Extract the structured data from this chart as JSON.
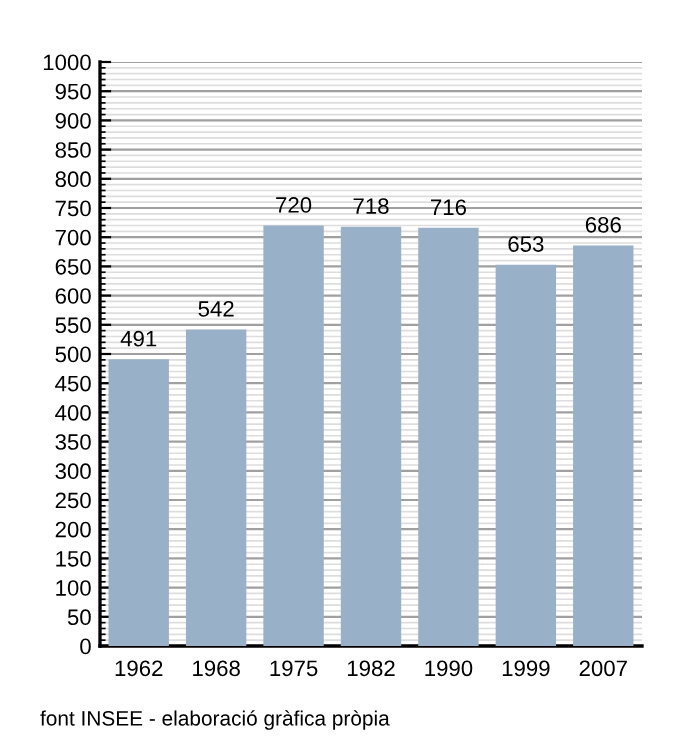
{
  "chart_data": {
    "type": "bar",
    "categories": [
      "1962",
      "1968",
      "1975",
      "1982",
      "1990",
      "1999",
      "2007"
    ],
    "values": [
      491,
      542,
      720,
      718,
      716,
      653,
      686
    ],
    "color": "#98b0c8",
    "data_labels": true,
    "ylim": [
      0,
      1000
    ],
    "yticks": [
      0,
      50,
      100,
      150,
      200,
      250,
      300,
      350,
      400,
      450,
      500,
      550,
      600,
      650,
      700,
      750,
      800,
      850,
      900,
      950,
      1000
    ],
    "grid": "y",
    "annotations": [
      "font INSEE - elaboració gràfica pròpia"
    ]
  }
}
